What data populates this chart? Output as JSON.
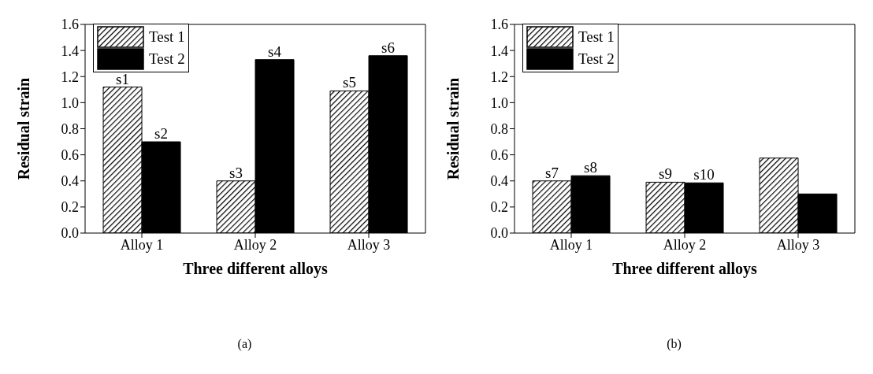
{
  "chart_data": [
    {
      "type": "bar",
      "categories": [
        "Alloy 1",
        "Alloy 2",
        "Alloy 3"
      ],
      "xlabel": "Three different alloys",
      "ylabel": "Residual strain",
      "ylim": [
        0,
        1.6
      ],
      "yticks": [
        {
          "value": 0,
          "label": "0.0"
        },
        {
          "value": 0.2,
          "label": "0.2"
        },
        {
          "value": 0.4,
          "label": "0.4"
        },
        {
          "value": 0.6,
          "label": "0.6"
        },
        {
          "value": 0.8,
          "label": "0.8"
        },
        {
          "value": 1,
          "label": "1.0"
        },
        {
          "value": 1.2,
          "label": "1.2"
        },
        {
          "value": 1.4,
          "label": "1.4"
        },
        {
          "value": 1.6,
          "label": "1.6"
        }
      ],
      "grid": false,
      "legend": "top left",
      "annotations": [
        "(a)"
      ],
      "series": [
        {
          "name": "Test 1",
          "color": "#000000",
          "values": [
            1.12,
            0.4,
            1.09
          ],
          "value_labels": [
            "s1",
            "s3",
            "s5"
          ]
        },
        {
          "name": "Test 2",
          "color": "#000000",
          "values": [
            0.7,
            1.33,
            1.36
          ],
          "value_labels": [
            "s2",
            "s4",
            "s6"
          ]
        }
      ]
    },
    {
      "type": "bar",
      "categories": [
        "Alloy 1",
        "Alloy 2",
        "Alloy 3"
      ],
      "xlabel": "Three different alloys",
      "ylabel": "Residual strain",
      "ylim": [
        0,
        1.6
      ],
      "yticks": [
        {
          "value": 0,
          "label": "0.0"
        },
        {
          "value": 0.2,
          "label": "0.2"
        },
        {
          "value": 0.4,
          "label": "0.4"
        },
        {
          "value": 0.6,
          "label": "0.6"
        },
        {
          "value": 0.8,
          "label": "0.8"
        },
        {
          "value": 1,
          "label": "1.0"
        },
        {
          "value": 1.2,
          "label": "1.2"
        },
        {
          "value": 1.4,
          "label": "1.4"
        },
        {
          "value": 1.6,
          "label": "1.6"
        }
      ],
      "grid": false,
      "legend": "top left",
      "annotations": [
        "(b)"
      ],
      "series": [
        {
          "name": "Test 1",
          "color": "#000000",
          "values": [
            0.4,
            0.39,
            0.575
          ],
          "value_labels": [
            "s7",
            "s9",
            null
          ]
        },
        {
          "name": "Test 2",
          "color": "#000000",
          "values": [
            0.44,
            0.385,
            0.3
          ],
          "value_labels": [
            "s8",
            "s10",
            null
          ]
        }
      ]
    }
  ]
}
